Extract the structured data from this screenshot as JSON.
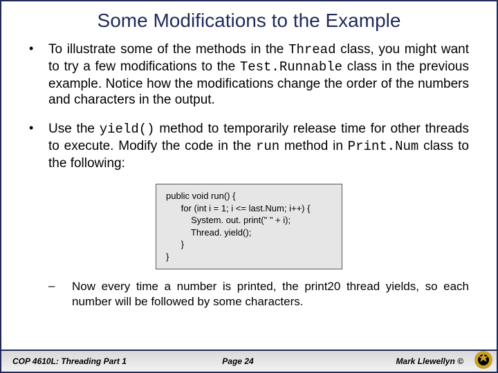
{
  "title": "Some Modifications to the Example",
  "bullets": [
    {
      "parts": [
        {
          "t": "To illustrate some of the methods in the ",
          "mono": false
        },
        {
          "t": "Thread",
          "mono": true
        },
        {
          "t": " class, you might want to try a few modifications to the ",
          "mono": false
        },
        {
          "t": "Test.Runnable",
          "mono": true
        },
        {
          "t": " class in the previous example.   Notice how the modifications change the order of the numbers and characters in the output.",
          "mono": false
        }
      ]
    },
    {
      "parts": [
        {
          "t": "Use the ",
          "mono": false
        },
        {
          "t": "yield()",
          "mono": true
        },
        {
          "t": " method to temporarily release time for other threads to execute.  Modify the code in the ",
          "mono": false
        },
        {
          "t": "run",
          "mono": true
        },
        {
          "t": " method in ",
          "mono": false
        },
        {
          "t": "Print.Num",
          "mono": true
        },
        {
          "t": " class to the following:",
          "mono": false
        }
      ]
    }
  ],
  "code": "public void run() {\n      for (int i = 1; i <= last.Num; i++) {\n          System. out. print(\" \" + i);\n          Thread. yield();\n      }\n}",
  "sub_bullet": "Now every time a number is printed, the print20 thread yields, so each number will be followed by some characters.",
  "footer": {
    "left": "COP 4610L: Threading Part 1",
    "center": "Page 24",
    "right": "Mark Llewellyn ©"
  },
  "colors": {
    "border": "#1f2a5a",
    "title": "#1f2a5a",
    "code_bg": "#e6e6e6",
    "footer_grad_top": "#d9d9d9",
    "footer_grad_bot": "#f2f2f2",
    "logo_outer": "#c9a227",
    "logo_inner": "#000000"
  }
}
